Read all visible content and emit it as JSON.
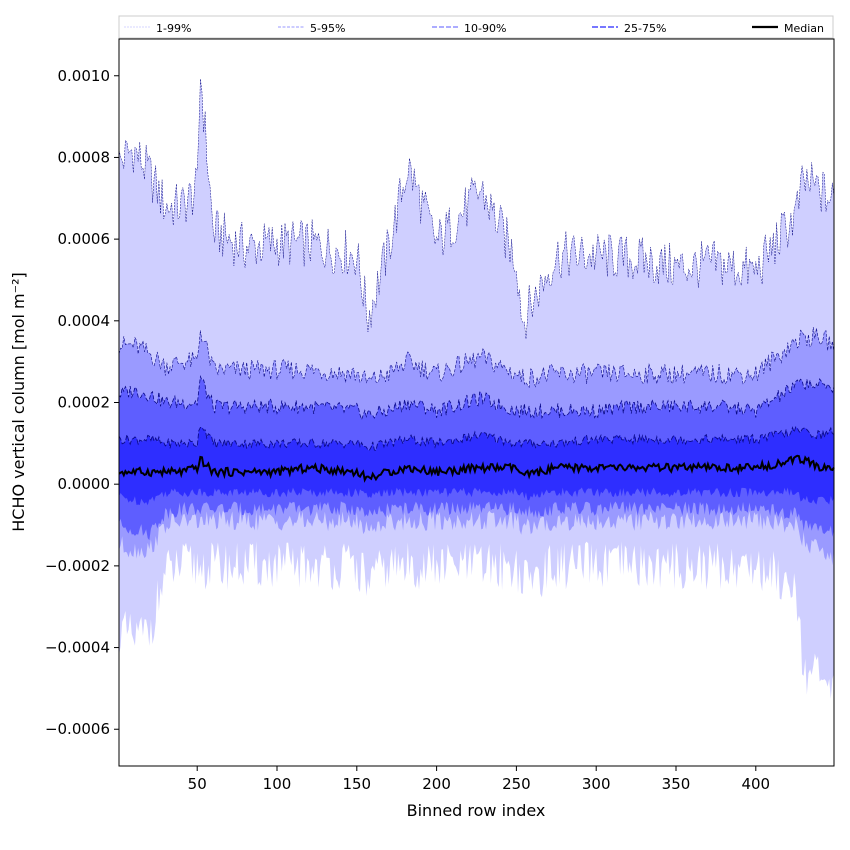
{
  "chart_data": {
    "type": "area",
    "title": "",
    "xlabel": "Binned row index",
    "ylabel": "HCHO vertical column [mol m⁻²]",
    "xlim": [
      1,
      449
    ],
    "ylim": [
      -0.00069,
      0.00109
    ],
    "xticks": [
      50,
      100,
      150,
      200,
      250,
      300,
      350,
      400
    ],
    "yticks": [
      -0.0006,
      -0.0004,
      -0.0002,
      0.0,
      0.0002,
      0.0004,
      0.0006,
      0.0008,
      0.001
    ],
    "ytick_labels": [
      "−0.0006",
      "−0.0004",
      "−0.0002",
      "0.0000",
      "0.0002",
      "0.0004",
      "0.0006",
      "0.0008",
      "0.0010"
    ],
    "legend": {
      "placement": "top (above plot)",
      "entries": [
        "1-99%",
        "5-95%",
        "10-90%",
        "25-75%",
        "Median"
      ]
    },
    "colors": {
      "band_1_99": "#cfcfff",
      "band_5_95": "#9a9aff",
      "band_10_90": "#5e5eff",
      "band_25_75": "#2e2eff",
      "line_color": "#0a0a8a",
      "median": "#000000"
    },
    "x": [
      1,
      10,
      20,
      30,
      40,
      50,
      52,
      60,
      80,
      100,
      120,
      150,
      157,
      170,
      182,
      200,
      228,
      250,
      254,
      275,
      300,
      325,
      350,
      375,
      400,
      425,
      430,
      440,
      449
    ],
    "series": [
      {
        "name": "Median",
        "values": [
          3e-05,
          3e-05,
          3e-05,
          3e-05,
          3e-05,
          4e-05,
          6e-05,
          3e-05,
          3e-05,
          3e-05,
          4e-05,
          3e-05,
          1.5e-05,
          3e-05,
          4e-05,
          3e-05,
          4e-05,
          4e-05,
          2e-05,
          4e-05,
          4e-05,
          4e-05,
          4e-05,
          4e-05,
          4e-05,
          6e-05,
          6e-05,
          4e-05,
          4e-05
        ]
      },
      {
        "name": "25-75%",
        "values": [
          [
            -3e-05,
            0.00011
          ],
          [
            -4e-05,
            0.00011
          ],
          [
            -4e-05,
            0.00011
          ],
          [
            -2e-05,
            0.0001
          ],
          [
            -2e-05,
            0.0001
          ],
          [
            -2e-05,
            0.0001
          ],
          [
            -2e-05,
            0.00015
          ],
          [
            -2e-05,
            0.0001
          ],
          [
            -2e-05,
            0.0001
          ],
          [
            -2e-05,
            0.0001
          ],
          [
            -2e-05,
            0.0001
          ],
          [
            -2e-05,
            0.0001
          ],
          [
            -3e-05,
            9e-05
          ],
          [
            -2e-05,
            0.0001
          ],
          [
            -2e-05,
            0.00011
          ],
          [
            -2e-05,
            0.0001
          ],
          [
            -2e-05,
            0.00012
          ],
          [
            -2e-05,
            0.0001
          ],
          [
            -3e-05,
            0.0001
          ],
          [
            -2e-05,
            0.0001
          ],
          [
            -2e-05,
            0.00011
          ],
          [
            -2e-05,
            0.00011
          ],
          [
            -2e-05,
            0.00011
          ],
          [
            -2e-05,
            0.00011
          ],
          [
            -2e-05,
            0.00011
          ],
          [
            -2e-05,
            0.00013
          ],
          [
            -4e-05,
            0.00013
          ],
          [
            -4e-05,
            0.00012
          ],
          [
            -4e-05,
            0.00013
          ]
        ]
      },
      {
        "name": "10-90%",
        "values": [
          [
            -0.0001,
            0.00022
          ],
          [
            -0.00011,
            0.00023
          ],
          [
            -0.00012,
            0.00022
          ],
          [
            -7e-05,
            0.0002
          ],
          [
            -6e-05,
            0.0002
          ],
          [
            -6e-05,
            0.0002
          ],
          [
            -6e-05,
            0.00026
          ],
          [
            -6e-05,
            0.00019
          ],
          [
            -6e-05,
            0.00019
          ],
          [
            -6e-05,
            0.00019
          ],
          [
            -6e-05,
            0.00019
          ],
          [
            -6e-05,
            0.00018
          ],
          [
            -8e-05,
            0.00017
          ],
          [
            -6e-05,
            0.00018
          ],
          [
            -6e-05,
            0.0002
          ],
          [
            -6e-05,
            0.00018
          ],
          [
            -6e-05,
            0.00021
          ],
          [
            -6e-05,
            0.00018
          ],
          [
            -7e-05,
            0.00018
          ],
          [
            -6e-05,
            0.00018
          ],
          [
            -6e-05,
            0.00018
          ],
          [
            -6e-05,
            0.00019
          ],
          [
            -6e-05,
            0.00019
          ],
          [
            -6e-05,
            0.00019
          ],
          [
            -6e-05,
            0.00018
          ],
          [
            -7e-05,
            0.00024
          ],
          [
            -0.0001,
            0.00025
          ],
          [
            -0.00011,
            0.00024
          ],
          [
            -0.00012,
            0.00024
          ]
        ]
      },
      {
        "name": "5-95%",
        "values": [
          [
            -0.00015,
            0.00034
          ],
          [
            -0.00016,
            0.00034
          ],
          [
            -0.00016,
            0.00032
          ],
          [
            -0.0001,
            0.00029
          ],
          [
            -9e-05,
            0.0003
          ],
          [
            -9e-05,
            0.0003
          ],
          [
            -9e-05,
            0.00038
          ],
          [
            -9e-05,
            0.00028
          ],
          [
            -9e-05,
            0.00028
          ],
          [
            -9e-05,
            0.00028
          ],
          [
            -9e-05,
            0.00028
          ],
          [
            -9e-05,
            0.00027
          ],
          [
            -0.00011,
            0.00025
          ],
          [
            -9e-05,
            0.00027
          ],
          [
            -9e-05,
            0.0003
          ],
          [
            -9e-05,
            0.00027
          ],
          [
            -9e-05,
            0.00031
          ],
          [
            -9e-05,
            0.00027
          ],
          [
            -0.00011,
            0.00026
          ],
          [
            -9e-05,
            0.00027
          ],
          [
            -9e-05,
            0.00027
          ],
          [
            -9e-05,
            0.00027
          ],
          [
            -9e-05,
            0.00027
          ],
          [
            -9e-05,
            0.00027
          ],
          [
            -9e-05,
            0.00027
          ],
          [
            -0.0001,
            0.00035
          ],
          [
            -0.00014,
            0.00036
          ],
          [
            -0.00016,
            0.00036
          ],
          [
            -0.00018,
            0.00034
          ]
        ]
      },
      {
        "name": "1-99%",
        "values": [
          [
            -0.00036,
            0.00079
          ],
          [
            -0.00038,
            0.00082
          ],
          [
            -0.00036,
            0.00076
          ],
          [
            -0.00022,
            0.00068
          ],
          [
            -0.0002,
            0.00068
          ],
          [
            -0.0002,
            0.00072
          ],
          [
            -0.0002,
            0.00101
          ],
          [
            -0.0002,
            0.00062
          ],
          [
            -0.0002,
            0.00058
          ],
          [
            -0.0002,
            0.00059
          ],
          [
            -0.0002,
            0.00059
          ],
          [
            -0.0002,
            0.00056
          ],
          [
            -0.00024,
            0.00041
          ],
          [
            -0.0002,
            0.00058
          ],
          [
            -0.0002,
            0.00078
          ],
          [
            -0.0002,
            0.00059
          ],
          [
            -0.0002,
            0.00072
          ],
          [
            -0.0002,
            0.00055
          ],
          [
            -0.00024,
            0.0004
          ],
          [
            -0.0002,
            0.00056
          ],
          [
            -0.0002,
            0.00056
          ],
          [
            -0.0002,
            0.00055
          ],
          [
            -0.0002,
            0.00053
          ],
          [
            -0.0002,
            0.00054
          ],
          [
            -0.0002,
            0.00052
          ],
          [
            -0.00024,
            0.00066
          ],
          [
            -0.00045,
            0.00074
          ],
          [
            -0.00048,
            0.00072
          ],
          [
            -0.00052,
            0.00069
          ]
        ]
      }
    ]
  }
}
